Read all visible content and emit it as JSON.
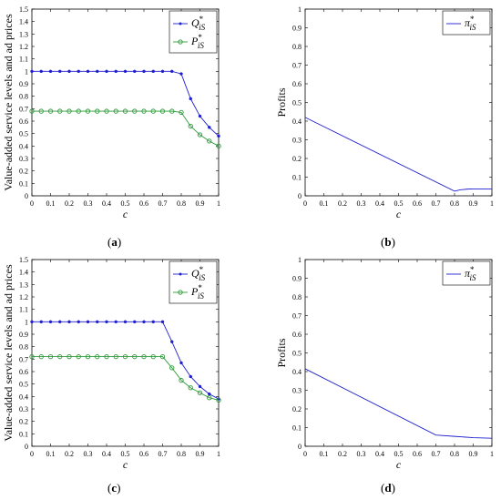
{
  "colors": {
    "blue": "#1f1fd0",
    "green": "#2e9a3a",
    "axis": "#000000"
  },
  "panels": [
    {
      "caption_letter": "a",
      "chart_data": {
        "type": "line",
        "xlabel": "c",
        "ylabel": "Value-added service levels and ad prices",
        "xlim": [
          0,
          1
        ],
        "ylim": [
          0,
          1.5
        ],
        "xticks": [
          "0",
          "0.1",
          "0.2",
          "0.3",
          "0.4",
          "0.5",
          "0.6",
          "0.7",
          "0.8",
          "0.9",
          "1"
        ],
        "yticks": [
          "0",
          "0.1",
          "0.2",
          "0.3",
          "0.4",
          "0.5",
          "0.6",
          "0.7",
          "0.8",
          "0.9",
          "1",
          "1.1",
          "1.2",
          "1.3",
          "1.4",
          "1.5"
        ],
        "legend_position": "top-right",
        "series": [
          {
            "name": "Q*iS",
            "name_base": "Q",
            "name_sup": "*",
            "name_sub": "iS",
            "color": "#1f1fd0",
            "marker": "dot",
            "x": [
              0,
              0.05,
              0.1,
              0.15,
              0.2,
              0.25,
              0.3,
              0.35,
              0.4,
              0.45,
              0.5,
              0.55,
              0.6,
              0.65,
              0.7,
              0.75,
              0.8,
              0.85,
              0.9,
              0.95,
              1
            ],
            "y": [
              1,
              1,
              1,
              1,
              1,
              1,
              1,
              1,
              1,
              1,
              1,
              1,
              1,
              1,
              1,
              1,
              0.98,
              0.78,
              0.64,
              0.55,
              0.48
            ]
          },
          {
            "name": "P*iS",
            "name_base": "P",
            "name_sup": "*",
            "name_sub": "iS",
            "color": "#2e9a3a",
            "marker": "circle",
            "x": [
              0,
              0.05,
              0.1,
              0.15,
              0.2,
              0.25,
              0.3,
              0.35,
              0.4,
              0.45,
              0.5,
              0.55,
              0.6,
              0.65,
              0.7,
              0.75,
              0.8,
              0.85,
              0.9,
              0.95,
              1
            ],
            "y": [
              0.68,
              0.68,
              0.68,
              0.68,
              0.68,
              0.68,
              0.68,
              0.68,
              0.68,
              0.68,
              0.68,
              0.68,
              0.68,
              0.68,
              0.68,
              0.68,
              0.67,
              0.56,
              0.49,
              0.44,
              0.4
            ]
          }
        ]
      }
    },
    {
      "caption_letter": "b",
      "chart_data": {
        "type": "line",
        "xlabel": "c",
        "ylabel": "Profits",
        "xlim": [
          0,
          1
        ],
        "ylim": [
          0,
          1
        ],
        "xticks": [
          "0",
          "0.1",
          "0.2",
          "0.3",
          "0.4",
          "0.5",
          "0.6",
          "0.7",
          "0.8",
          "0.9",
          "1"
        ],
        "yticks": [
          "0",
          "0.1",
          "0.2",
          "0.3",
          "0.4",
          "0.5",
          "0.6",
          "0.7",
          "0.8",
          "0.9",
          "1"
        ],
        "legend_position": "top-right",
        "series": [
          {
            "name": "π*iS",
            "name_base": "π",
            "name_sup": "*",
            "name_sub": "iS",
            "color": "#1f1fd0",
            "marker": "none",
            "x": [
              0,
              0.8,
              0.83,
              0.87,
              0.9,
              1
            ],
            "y": [
              0.42,
              0.025,
              0.032,
              0.036,
              0.037,
              0.037
            ]
          }
        ]
      }
    },
    {
      "caption_letter": "c",
      "chart_data": {
        "type": "line",
        "xlabel": "c",
        "ylabel": "Value-added service levels and ad prices",
        "xlim": [
          0,
          1
        ],
        "ylim": [
          0,
          1.5
        ],
        "xticks": [
          "0",
          "0.1",
          "0.2",
          "0.3",
          "0.4",
          "0.5",
          "0.6",
          "0.7",
          "0.8",
          "0.9",
          "1"
        ],
        "yticks": [
          "0",
          "0.1",
          "0.2",
          "0.3",
          "0.4",
          "0.5",
          "0.6",
          "0.7",
          "0.8",
          "0.9",
          "1",
          "1.1",
          "1.2",
          "1.3",
          "1.4",
          "1.5"
        ],
        "legend_position": "top-right",
        "series": [
          {
            "name": "Q*iS",
            "name_base": "Q",
            "name_sup": "*",
            "name_sub": "iS",
            "color": "#1f1fd0",
            "marker": "dot",
            "x": [
              0,
              0.05,
              0.1,
              0.15,
              0.2,
              0.25,
              0.3,
              0.35,
              0.4,
              0.45,
              0.5,
              0.55,
              0.6,
              0.65,
              0.7,
              0.75,
              0.8,
              0.85,
              0.9,
              0.95,
              1
            ],
            "y": [
              1,
              1,
              1,
              1,
              1,
              1,
              1,
              1,
              1,
              1,
              1,
              1,
              1,
              1,
              1,
              0.84,
              0.67,
              0.56,
              0.48,
              0.42,
              0.38
            ]
          },
          {
            "name": "P*iS",
            "name_base": "P",
            "name_sup": "*",
            "name_sub": "iS",
            "color": "#2e9a3a",
            "marker": "circle",
            "x": [
              0,
              0.05,
              0.1,
              0.15,
              0.2,
              0.25,
              0.3,
              0.35,
              0.4,
              0.45,
              0.5,
              0.55,
              0.6,
              0.65,
              0.7,
              0.75,
              0.8,
              0.85,
              0.9,
              0.95,
              1
            ],
            "y": [
              0.72,
              0.72,
              0.72,
              0.72,
              0.72,
              0.72,
              0.72,
              0.72,
              0.72,
              0.72,
              0.72,
              0.72,
              0.72,
              0.72,
              0.72,
              0.63,
              0.53,
              0.47,
              0.43,
              0.39,
              0.37
            ]
          }
        ]
      }
    },
    {
      "caption_letter": "d",
      "chart_data": {
        "type": "line",
        "xlabel": "c",
        "ylabel": "Profits",
        "xlim": [
          0,
          1
        ],
        "ylim": [
          0,
          1
        ],
        "xticks": [
          "0",
          "0.1",
          "0.2",
          "0.3",
          "0.4",
          "0.5",
          "0.6",
          "0.7",
          "0.8",
          "0.9",
          "1"
        ],
        "yticks": [
          "0",
          "0.1",
          "0.2",
          "0.3",
          "0.4",
          "0.5",
          "0.6",
          "0.7",
          "0.8",
          "0.9",
          "1"
        ],
        "legend_position": "top-right",
        "series": [
          {
            "name": "π*iS",
            "name_base": "π",
            "name_sup": "*",
            "name_sub": "iS",
            "color": "#1f1fd0",
            "marker": "none",
            "x": [
              0,
              0.7,
              0.8,
              0.9,
              1
            ],
            "y": [
              0.415,
              0.06,
              0.053,
              0.046,
              0.043
            ]
          }
        ]
      }
    }
  ]
}
